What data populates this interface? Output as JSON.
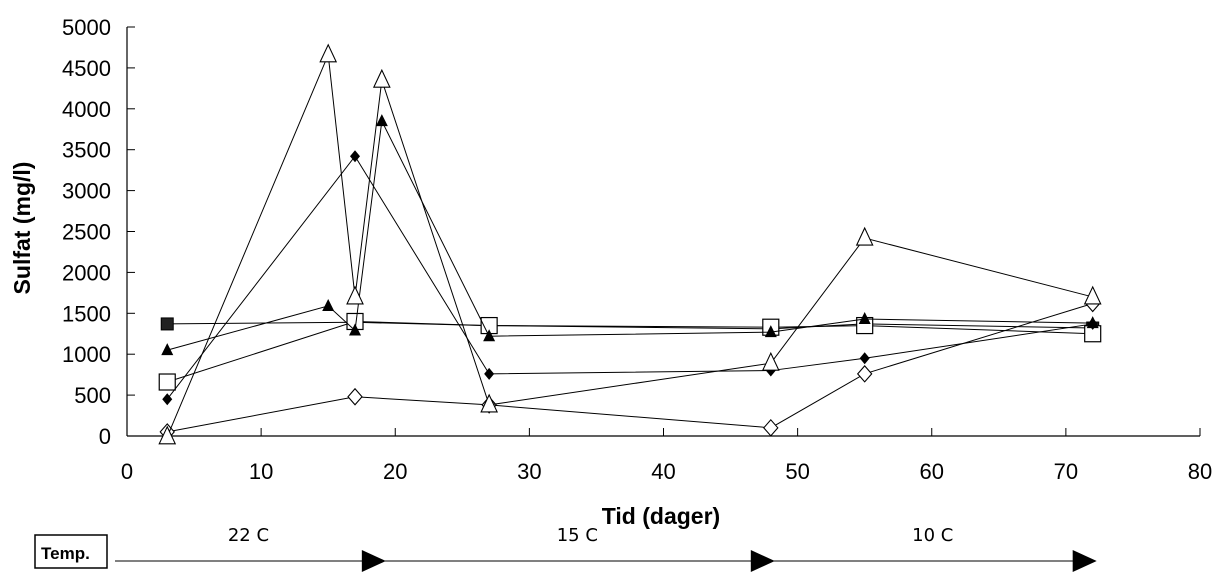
{
  "chart_data": {
    "type": "line",
    "title": "",
    "xlabel": "Tid (dager)",
    "ylabel": "Sulfat (mg/l)",
    "xlim": [
      0,
      80
    ],
    "ylim": [
      0,
      5000
    ],
    "x_ticks": [
      0,
      10,
      20,
      30,
      40,
      50,
      60,
      70,
      80
    ],
    "y_ticks": [
      0,
      500,
      1000,
      1500,
      2000,
      2500,
      3000,
      3500,
      4000,
      4500,
      5000
    ],
    "grid": false,
    "legend": "none",
    "series": [
      {
        "marker": "filled-square",
        "color": "#000000",
        "points": [
          [
            3,
            1370
          ],
          [
            17,
            1390
          ],
          [
            27,
            1350
          ],
          [
            48,
            1310
          ],
          [
            55,
            1370
          ],
          [
            72,
            1320
          ]
        ]
      },
      {
        "marker": "open-square",
        "color": "#000000",
        "points": [
          [
            3,
            660
          ],
          [
            17,
            1400
          ],
          [
            27,
            1350
          ],
          [
            48,
            1330
          ],
          [
            55,
            1350
          ],
          [
            72,
            1250
          ]
        ]
      },
      {
        "marker": "filled-triangle",
        "color": "#000000",
        "points": [
          [
            3,
            1050
          ],
          [
            15,
            1590
          ],
          [
            17,
            1290
          ],
          [
            19,
            3850
          ],
          [
            27,
            1220
          ],
          [
            48,
            1270
          ],
          [
            55,
            1430
          ],
          [
            72,
            1380
          ]
        ]
      },
      {
        "marker": "filled-diamond",
        "color": "#000000",
        "points": [
          [
            3,
            450
          ],
          [
            17,
            3420
          ],
          [
            27,
            760
          ],
          [
            48,
            800
          ],
          [
            55,
            950
          ],
          [
            72,
            1370
          ]
        ]
      },
      {
        "marker": "open-diamond",
        "color": "#000000",
        "points": [
          [
            3,
            50
          ],
          [
            17,
            480
          ],
          [
            27,
            380
          ],
          [
            48,
            100
          ],
          [
            55,
            760
          ],
          [
            72,
            1620
          ]
        ]
      },
      {
        "marker": "open-triangle",
        "color": "#000000",
        "points": [
          [
            3,
            -10
          ],
          [
            15,
            4660
          ],
          [
            17,
            1700
          ],
          [
            19,
            4350
          ],
          [
            27,
            380
          ],
          [
            48,
            890
          ],
          [
            55,
            2420
          ],
          [
            72,
            1700
          ]
        ]
      }
    ]
  },
  "temperature": {
    "box_label": "Temp.",
    "segments": [
      {
        "label": "22 C",
        "from": 0,
        "to": 19
      },
      {
        "label": "15 C",
        "from": 19,
        "to": 48
      },
      {
        "label": "10 C",
        "from": 48,
        "to": 72
      }
    ]
  }
}
